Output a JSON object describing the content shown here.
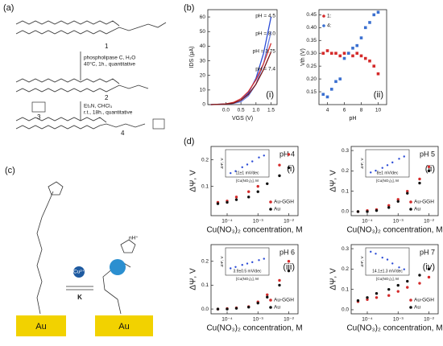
{
  "scheme": {
    "label": "(a)",
    "compounds": [
      "1",
      "2",
      "3",
      "4"
    ],
    "steps": [
      [
        "phospholipase C, H₂O",
        "40°C, 1h., quantitative"
      ],
      [
        "Et₃N, CHCl₃",
        "r.t., 18h., quantitative"
      ]
    ]
  },
  "panel_b": "(b)",
  "panel_d": "(d)",
  "diagram": {
    "label": "(c)",
    "ion": "Cu²⁺",
    "equilibrium": "K",
    "surface": [
      "Au",
      "Au"
    ],
    "charge": "nH⁺"
  },
  "chart_data": [
    {
      "type": "line",
      "panel": "(i)",
      "xlabel": "VGS (V)",
      "ylabel": "IDS (μA)",
      "x": [
        -0.5,
        0,
        0.25,
        0.5,
        0.75,
        1.0,
        1.25,
        1.5
      ],
      "xlim": [
        -0.6,
        1.7
      ],
      "xticks": [
        {
          "value": 0,
          "label": "0.0"
        },
        0.5,
        {
          "value": 1,
          "label": "1.0"
        },
        1.5
      ],
      "ylim": [
        0,
        65
      ],
      "yticks": [
        0,
        10,
        20,
        30,
        40,
        50,
        60
      ],
      "series": [
        {
          "name": "pH = 4.5",
          "color": "#2b4bd6",
          "values": [
            0,
            0.5,
            1,
            3,
            8,
            18,
            35,
            60
          ]
        },
        {
          "name": "pH = 8.0",
          "color": "#6a7fe0",
          "values": [
            0,
            0.3,
            0.8,
            2,
            6,
            14,
            28,
            50
          ]
        },
        {
          "name": "pH = 3.75",
          "color": "#d43030",
          "values": [
            0,
            0.5,
            1.5,
            4,
            9,
            17,
            28,
            42
          ]
        },
        {
          "name": "pH = 7.4",
          "color": "#7a1818",
          "values": [
            0,
            0.3,
            1,
            3,
            7,
            14,
            24,
            36
          ]
        }
      ]
    },
    {
      "type": "scatter",
      "panel": "(ii)",
      "xlabel": "pH",
      "ylabel": "Vth (V)",
      "marker": "square",
      "legend": "upper left",
      "x": [
        3.5,
        4,
        4.5,
        5,
        5.5,
        6,
        6.5,
        7,
        7.5,
        8,
        8.5,
        9,
        9.5,
        10
      ],
      "xlim": [
        3,
        11
      ],
      "xticks": [
        4,
        6,
        8,
        10
      ],
      "ylim": [
        0.1,
        0.47
      ],
      "yticks": [
        0.15,
        {
          "value": 0.2,
          "label": "0.20"
        },
        0.25,
        {
          "value": 0.3,
          "label": "0.30"
        },
        0.35,
        {
          "value": 0.4,
          "label": "0.40"
        },
        0.45
      ],
      "series": [
        {
          "name": "1:",
          "color": "#d42a2a",
          "values": [
            0.3,
            0.31,
            0.3,
            0.3,
            0.29,
            0.3,
            0.3,
            0.29,
            0.3,
            0.29,
            0.28,
            0.27,
            0.25,
            0.22
          ]
        },
        {
          "name": "4:",
          "color": "#3a6fd0",
          "values": [
            0.14,
            0.13,
            0.16,
            0.19,
            0.2,
            0.28,
            0.3,
            0.32,
            0.33,
            0.36,
            0.4,
            0.42,
            0.45,
            0.46
          ]
        }
      ]
    },
    {
      "type": "scatter",
      "panel": "(i)",
      "annotation": "pH 4",
      "xlabel": "Cu(NO₃)₂ concentration, M",
      "ylabel": "ΔΨ, V",
      "xlog": true,
      "legend": "lower right",
      "x": [
        5e-05,
        0.0001,
        0.0002,
        0.0005,
        0.001,
        0.002,
        0.005,
        0.01
      ],
      "xlim": [
        3e-05,
        0.02
      ],
      "xticks": [
        {
          "value": 0.0001,
          "label": "10⁻⁴"
        },
        {
          "value": 0.001,
          "label": "10⁻³"
        },
        {
          "value": 0.01,
          "label": "10⁻²"
        }
      ],
      "ylim": [
        -0.01,
        0.25
      ],
      "yticks": [
        0.1,
        0.2
      ],
      "series": [
        {
          "name": "Au-GGH",
          "color": "#d42a2a",
          "values": [
            0.04,
            0.045,
            0.06,
            0.08,
            0.1,
            0.14,
            0.18,
            0.22
          ]
        },
        {
          "name": "Au",
          "color": "#111111",
          "values": [
            0.035,
            0.04,
            0.05,
            0.06,
            0.08,
            0.11,
            0.14,
            0.17
          ]
        }
      ],
      "inset": {
        "xlog": true,
        "xlabel": "[Cu(NO₃)₂], M",
        "ylabel": "ΔΨ', V",
        "annotation": "11±1 mV/dec",
        "x": [
          0.0001,
          0.0002,
          0.0005,
          0.001,
          0.002,
          0.005,
          0.01
        ],
        "xlim": [
          5e-05,
          0.02
        ],
        "ylim": [
          -0.01,
          0.06
        ],
        "values": [
          0.0,
          0.005,
          0.015,
          0.022,
          0.03,
          0.04,
          0.045
        ]
      }
    },
    {
      "type": "scatter",
      "panel": "(ii)",
      "annotation": "pH 5",
      "xlabel": "Cu(NO₃)₂ concentration, M",
      "ylabel": "ΔΨ, V",
      "xlog": true,
      "legend": "lower right",
      "x": [
        5e-05,
        0.0001,
        0.0002,
        0.0005,
        0.001,
        0.002,
        0.005,
        0.01
      ],
      "xlim": [
        3e-05,
        0.02
      ],
      "xticks": [
        {
          "value": 0.0001,
          "label": "10⁻⁴"
        },
        {
          "value": 0.001,
          "label": "10⁻³"
        },
        {
          "value": 0.01,
          "label": "10⁻²"
        }
      ],
      "ylim": [
        -0.02,
        0.32
      ],
      "yticks": [
        {
          "value": 0,
          "label": "0.0"
        },
        0.1,
        0.2,
        0.3
      ],
      "series": [
        {
          "name": "Au-GGH",
          "color": "#d42a2a",
          "values": [
            0.0,
            0.005,
            0.01,
            0.03,
            0.06,
            0.1,
            0.16,
            0.22
          ]
        },
        {
          "name": "Au",
          "color": "#111111",
          "values": [
            0.0,
            0.0,
            0.005,
            0.02,
            0.05,
            0.09,
            0.14,
            0.2
          ]
        }
      ],
      "inset": {
        "xlog": true,
        "xlabel": "[Cu(NO₃)₂], M",
        "ylabel": "ΔΨ', V",
        "annotation": "8±1 mV/dec",
        "x": [
          0.0001,
          0.0002,
          0.0005,
          0.001,
          0.002,
          0.005,
          0.01
        ],
        "xlim": [
          5e-05,
          0.02
        ],
        "ylim": [
          -0.01,
          0.05
        ],
        "values": [
          0.0,
          0.004,
          0.01,
          0.016,
          0.022,
          0.03,
          0.035
        ]
      }
    },
    {
      "type": "scatter",
      "panel": "(iii)",
      "annotation": "pH 6",
      "xlabel": "Cu(NO₃)₂ concentration, M",
      "ylabel": "ΔΨ, V",
      "xlog": true,
      "legend": "lower right",
      "x": [
        5e-05,
        0.0001,
        0.0002,
        0.0005,
        0.001,
        0.002,
        0.005,
        0.01
      ],
      "xlim": [
        3e-05,
        0.02
      ],
      "xticks": [
        {
          "value": 0.0001,
          "label": "10⁻⁴"
        },
        {
          "value": 0.001,
          "label": "10⁻³"
        },
        {
          "value": 0.01,
          "label": "10⁻²"
        }
      ],
      "ylim": [
        -0.02,
        0.27
      ],
      "yticks": [
        {
          "value": 0,
          "label": "0.0"
        },
        0.1,
        0.2
      ],
      "series": [
        {
          "name": "Au-GGH",
          "color": "#d42a2a",
          "values": [
            0.0,
            0.002,
            0.005,
            0.01,
            0.03,
            0.06,
            0.12,
            0.2
          ]
        },
        {
          "name": "Au",
          "color": "#111111",
          "values": [
            0.0,
            0.0,
            0.003,
            0.008,
            0.025,
            0.05,
            0.1,
            0.16
          ]
        }
      ],
      "inset": {
        "xlog": true,
        "xlabel": "[Cu(NO₃)₂], M",
        "ylabel": "ΔΨ', V",
        "annotation": "3.9±0.5 mV/dec",
        "x": [
          0.0001,
          0.0002,
          0.0005,
          0.001,
          0.002,
          0.005,
          0.01
        ],
        "xlim": [
          5e-05,
          0.02
        ],
        "ylim": [
          -0.01,
          0.03
        ],
        "values": [
          0.0,
          0.002,
          0.005,
          0.007,
          0.009,
          0.012,
          0.014
        ]
      }
    },
    {
      "type": "scatter",
      "panel": "(iv)",
      "annotation": "pH 7",
      "xlabel": "Cu(NO₃)₂ concentration, M",
      "ylabel": "ΔΨ, V",
      "xlog": true,
      "legend": "lower right",
      "x": [
        5e-05,
        0.0001,
        0.0002,
        0.0005,
        0.001,
        0.002,
        0.005,
        0.01
      ],
      "xlim": [
        3e-05,
        0.02
      ],
      "xticks": [
        {
          "value": 0.0001,
          "label": "10⁻⁴"
        },
        {
          "value": 0.001,
          "label": "10⁻³"
        },
        {
          "value": 0.01,
          "label": "10⁻²"
        }
      ],
      "ylim": [
        -0.02,
        0.32
      ],
      "yticks": [
        {
          "value": 0,
          "label": "0.0"
        },
        0.1,
        0.2,
        0.3
      ],
      "series": [
        {
          "name": "Au-GGH",
          "color": "#d42a2a",
          "values": [
            0.04,
            0.05,
            0.06,
            0.07,
            0.09,
            0.11,
            0.13,
            0.16
          ]
        },
        {
          "name": "Au",
          "color": "#111111",
          "values": [
            0.045,
            0.06,
            0.08,
            0.1,
            0.12,
            0.14,
            0.17,
            0.2
          ]
        }
      ],
      "inset": {
        "xlog": true,
        "xlabel": "[Cu(NO₃)₂], M",
        "ylabel": "ΔΨ', V",
        "annotation": "14.1±1.3 mV/dec",
        "x": [
          0.0001,
          0.0002,
          0.0005,
          0.001,
          0.002,
          0.005,
          0.01
        ],
        "xlim": [
          5e-05,
          0.02
        ],
        "ylim": [
          -0.06,
          0.01
        ],
        "values": [
          0.0,
          -0.005,
          -0.015,
          -0.02,
          -0.03,
          -0.04,
          -0.045
        ]
      }
    }
  ]
}
